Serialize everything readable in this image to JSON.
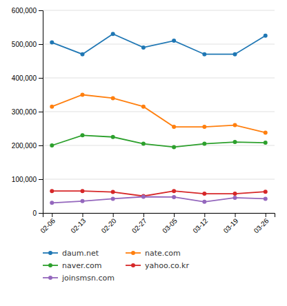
{
  "chart_data": {
    "type": "line",
    "categories": [
      "02-06",
      "02-13",
      "02-20",
      "02-27",
      "03-05",
      "03-12",
      "03-19",
      "03-26"
    ],
    "series": [
      {
        "name": "daum.net",
        "values": [
          505000,
          470000,
          530000,
          490000,
          510000,
          470000,
          470000,
          525000
        ]
      },
      {
        "name": "nate.com",
        "values": [
          315000,
          350000,
          340000,
          315000,
          255000,
          255000,
          260000,
          238000
        ]
      },
      {
        "name": "naver.com",
        "values": [
          200000,
          230000,
          225000,
          205000,
          195000,
          205000,
          210000,
          208000
        ]
      },
      {
        "name": "yahoo.co.kr",
        "values": [
          65000,
          65000,
          62000,
          50000,
          65000,
          57000,
          57000,
          63000
        ]
      },
      {
        "name": "joinsmsn.com",
        "values": [
          30000,
          35000,
          42000,
          48000,
          47000,
          33000,
          45000,
          42000
        ]
      }
    ],
    "ylim": [
      0,
      600000
    ],
    "yticks": [
      0,
      {
        "value": 100000,
        "label": "100,000"
      },
      {
        "value": 200000,
        "label": "200,000"
      },
      {
        "value": 300000,
        "label": "300,000"
      },
      {
        "value": 400000,
        "label": "400,000"
      },
      {
        "value": 500000,
        "label": "500,000"
      },
      {
        "value": 600000,
        "label": "600,000"
      }
    ],
    "grid": true,
    "legend": "bottom",
    "marker": "circle"
  }
}
